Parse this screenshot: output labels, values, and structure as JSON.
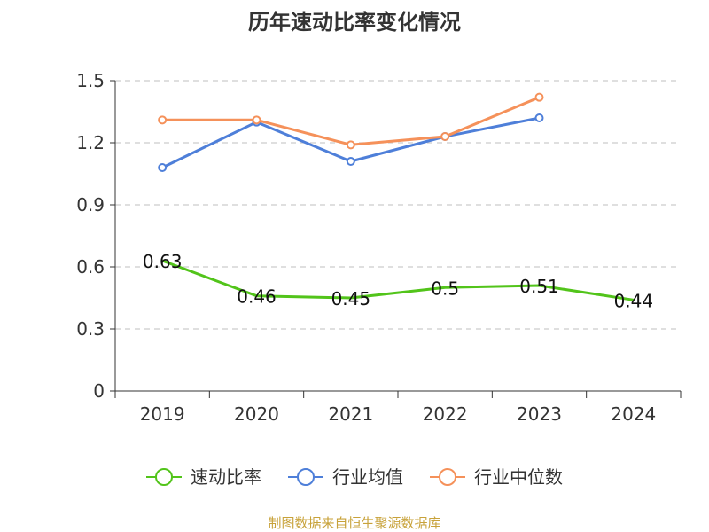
{
  "chart_data": {
    "type": "line",
    "title": "历年速动比率变化情况",
    "categories": [
      "2019",
      "2020",
      "2021",
      "2022",
      "2023",
      "2024"
    ],
    "ylim": [
      0,
      1.5
    ],
    "yticks": [
      "0",
      "0.3",
      "0.6",
      "0.9",
      "1.2",
      "1.5"
    ],
    "grid": true,
    "legend_position": "bottom",
    "series": [
      {
        "name": "速动比率",
        "color": "#52c41a",
        "values": [
          0.63,
          0.46,
          0.45,
          0.5,
          0.51,
          0.44
        ],
        "data_labels": [
          "0.63",
          "0.46",
          "0.45",
          "0.5",
          "0.51",
          "0.44"
        ],
        "markers": false
      },
      {
        "name": "行业均值",
        "color": "#4e7fd9",
        "values": [
          1.08,
          1.3,
          1.11,
          1.23,
          1.32,
          null
        ],
        "markers": true
      },
      {
        "name": "行业中位数",
        "color": "#f5915a",
        "values": [
          1.31,
          1.31,
          1.19,
          1.23,
          1.42,
          null
        ],
        "markers": true
      }
    ]
  },
  "source": "制图数据来自恒生聚源数据库"
}
